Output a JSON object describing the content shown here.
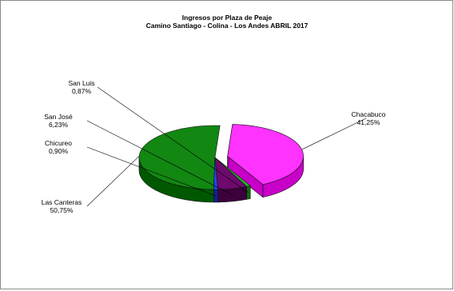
{
  "chart_data": {
    "type": "pie",
    "title": "Ingresos por Plaza de Peaje",
    "subtitle": "Camino Santiago - Colina - Los Andes ABRIL 2017",
    "slices": [
      {
        "name": "Chacabuco",
        "value": 41.25,
        "label": "41,25%",
        "color": "#ff33ff",
        "side": "#c800c8",
        "exploded": true
      },
      {
        "name": "Las Canteras",
        "value": 50.75,
        "label": "50,75%",
        "color": "#128712",
        "side": "#005800",
        "exploded": false
      },
      {
        "name": "Chicureo",
        "value": 0.9,
        "label": "0,90%",
        "color": "#2244ee",
        "side": "#10208a",
        "exploded": false
      },
      {
        "name": "San José",
        "value": 6.23,
        "label": "6,23%",
        "color": "#6e0a6e",
        "side": "#3c003c",
        "exploded": false
      },
      {
        "name": "San Luis",
        "value": 0.87,
        "label": "0,87%",
        "color": "#22bb22",
        "side": "#0e6e0e",
        "exploded": false
      }
    ],
    "legend": "none",
    "grid": false
  }
}
